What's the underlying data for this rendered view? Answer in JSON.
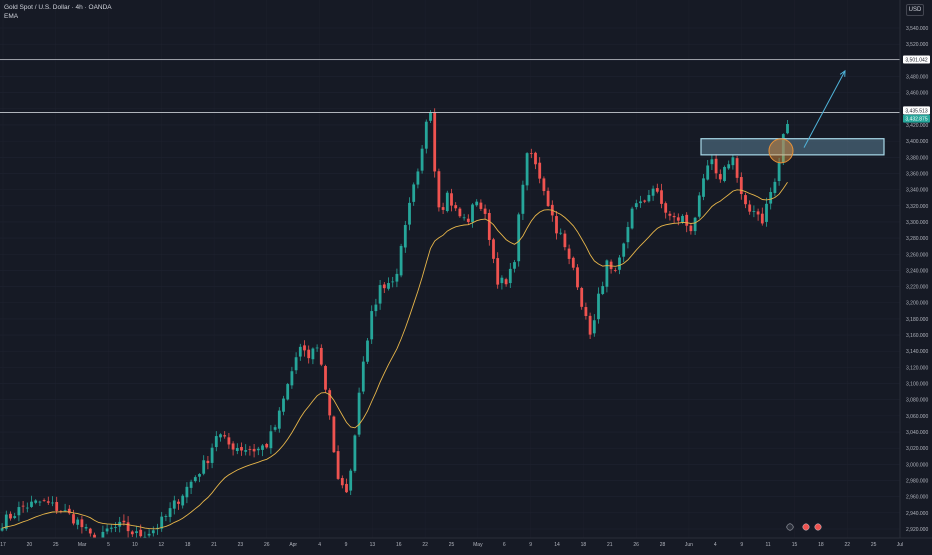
{
  "header": {
    "instrument": "Gold Spot / U.S. Dollar · 4h · OANDA",
    "indicator": "EMA"
  },
  "axis": {
    "currency_button": "USD",
    "y_ticks": [
      2920,
      2940,
      2960,
      2980,
      3000,
      3020,
      3040,
      3060,
      3080,
      3100,
      3120,
      3140,
      3160,
      3180,
      3200,
      3220,
      3240,
      3260,
      3280,
      3300,
      3320,
      3340,
      3360,
      3380,
      3400,
      3420,
      3440,
      3460,
      3480,
      3500,
      3520,
      3540
    ],
    "x_ticks": [
      "17",
      "20",
      "25",
      "Mar",
      "5",
      "10",
      "12",
      "18",
      "21",
      "23",
      "26",
      "Apr",
      "4",
      "9",
      "13",
      "16",
      "22",
      "25",
      "May",
      "6",
      "9",
      "14",
      "18",
      "21",
      "26",
      "28",
      "Jun",
      "4",
      "9",
      "11",
      "15",
      "18",
      "22",
      "25",
      "Jul"
    ],
    "price_tags": [
      {
        "label": "3,501.042",
        "value": 3501.042,
        "color": "#ffffff",
        "text_color": "#131722"
      },
      {
        "label": "3,435.513",
        "value": 3435.513,
        "color": "#ffffff",
        "text_color": "#131722"
      },
      {
        "label": "3,432.875",
        "value": 3432.875,
        "color": "#26a69a",
        "text_color": "#ffffff"
      }
    ]
  },
  "colors": {
    "background": "#161a25",
    "grid": "#1f2330",
    "up": "#26a69a",
    "down": "#ef5350",
    "ema": "#e6b54a",
    "zone_fill": "#5b7f95",
    "zone_border": "#a8d8e8",
    "circle_fill": "#e4913a",
    "arrow": "#4fb3d9",
    "hline": "#c7cad1"
  },
  "chart_data": {
    "type": "candlestick",
    "symbol": "XAUUSD",
    "timeframe": "4h",
    "ylim": [
      2910,
      3560
    ],
    "horizontal_lines": [
      3501.042,
      3435.513
    ],
    "zone": {
      "price_high": 3403,
      "price_low": 3383
    },
    "anchors": [
      [
        0,
        2928
      ],
      [
        20,
        2947
      ],
      [
        40,
        2954
      ],
      [
        60,
        2943
      ],
      [
        75,
        2930
      ],
      [
        95,
        2900
      ],
      [
        105,
        2918
      ],
      [
        120,
        2924
      ],
      [
        135,
        2912
      ],
      [
        150,
        2918
      ],
      [
        162,
        2932
      ],
      [
        175,
        2955
      ],
      [
        190,
        2980
      ],
      [
        205,
        3005
      ],
      [
        215,
        3040
      ],
      [
        225,
        3025
      ],
      [
        240,
        3020
      ],
      [
        255,
        3018
      ],
      [
        265,
        3025
      ],
      [
        275,
        3052
      ],
      [
        285,
        3095
      ],
      [
        297,
        3145
      ],
      [
        305,
        3130
      ],
      [
        315,
        3148
      ],
      [
        322,
        3105
      ],
      [
        328,
        3060
      ],
      [
        335,
        2980
      ],
      [
        342,
        2965
      ],
      [
        348,
        2980
      ],
      [
        355,
        3070
      ],
      [
        362,
        3140
      ],
      [
        370,
        3185
      ],
      [
        378,
        3220
      ],
      [
        385,
        3225
      ],
      [
        392,
        3225
      ],
      [
        400,
        3270
      ],
      [
        410,
        3335
      ],
      [
        418,
        3365
      ],
      [
        423,
        3420
      ],
      [
        428,
        3450
      ],
      [
        432,
        3372
      ],
      [
        438,
        3312
      ],
      [
        445,
        3335
      ],
      [
        455,
        3310
      ],
      [
        465,
        3300
      ],
      [
        475,
        3330
      ],
      [
        485,
        3298
      ],
      [
        495,
        3230
      ],
      [
        505,
        3220
      ],
      [
        513,
        3260
      ],
      [
        520,
        3345
      ],
      [
        527,
        3392
      ],
      [
        533,
        3370
      ],
      [
        540,
        3350
      ],
      [
        548,
        3315
      ],
      [
        555,
        3290
      ],
      [
        560,
        3280
      ],
      [
        565,
        3255
      ],
      [
        573,
        3240
      ],
      [
        578,
        3210
      ],
      [
        583,
        3180
      ],
      [
        590,
        3160
      ],
      [
        597,
        3210
      ],
      [
        605,
        3248
      ],
      [
        612,
        3228
      ],
      [
        620,
        3260
      ],
      [
        630,
        3320
      ],
      [
        640,
        3320
      ],
      [
        650,
        3345
      ],
      [
        660,
        3320
      ],
      [
        670,
        3302
      ],
      [
        680,
        3305
      ],
      [
        688,
        3290
      ],
      [
        695,
        3315
      ],
      [
        702,
        3350
      ],
      [
        708,
        3380
      ],
      [
        715,
        3350
      ],
      [
        722,
        3365
      ],
      [
        730,
        3385
      ],
      [
        738,
        3335
      ],
      [
        745,
        3310
      ],
      [
        752,
        3318
      ],
      [
        760,
        3302
      ],
      [
        768,
        3335
      ],
      [
        775,
        3355
      ],
      [
        780,
        3400
      ],
      [
        787,
        3430
      ]
    ]
  }
}
